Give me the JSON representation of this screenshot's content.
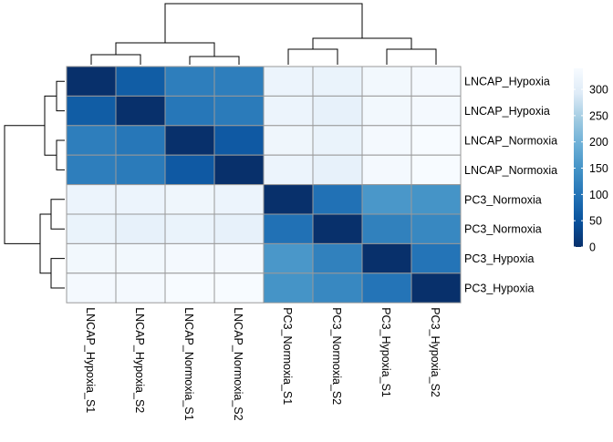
{
  "chart_data": {
    "type": "heatmap",
    "title": "",
    "rows": [
      "LNCAP_Hypoxia",
      "LNCAP_Hypoxia",
      "LNCAP_Normoxia",
      "LNCAP_Normoxia",
      "PC3_Normoxia",
      "PC3_Normoxia",
      "PC3_Hypoxia",
      "PC3_Hypoxia"
    ],
    "columns": [
      "LNCAP_Hypoxia_S1",
      "LNCAP_Hypoxia_S2",
      "LNCAP_Normoxia_S1",
      "LNCAP_Normoxia_S2",
      "PC3_Normoxia_S1",
      "PC3_Normoxia_S2",
      "PC3_Hypoxia_S1",
      "PC3_Hypoxia_S2"
    ],
    "values": [
      [
        0,
        65,
        115,
        115,
        320,
        315,
        330,
        335
      ],
      [
        65,
        0,
        105,
        110,
        320,
        310,
        330,
        335
      ],
      [
        115,
        105,
        0,
        60,
        325,
        315,
        335,
        340
      ],
      [
        115,
        110,
        60,
        0,
        320,
        310,
        335,
        340
      ],
      [
        320,
        320,
        325,
        320,
        0,
        95,
        155,
        150
      ],
      [
        315,
        310,
        315,
        310,
        95,
        0,
        120,
        130
      ],
      [
        330,
        330,
        335,
        335,
        155,
        120,
        0,
        100
      ],
      [
        335,
        335,
        340,
        340,
        150,
        130,
        100,
        0
      ]
    ],
    "colorbar": {
      "ticks": [
        0,
        50,
        100,
        150,
        200,
        250,
        300
      ],
      "range": [
        0,
        340
      ]
    },
    "colors": {
      "low": "#08306b",
      "high": "#f7fbff",
      "cell_border": "#999999"
    },
    "row_dendrogram": "left",
    "column_dendrogram": "top",
    "legend": "right"
  }
}
